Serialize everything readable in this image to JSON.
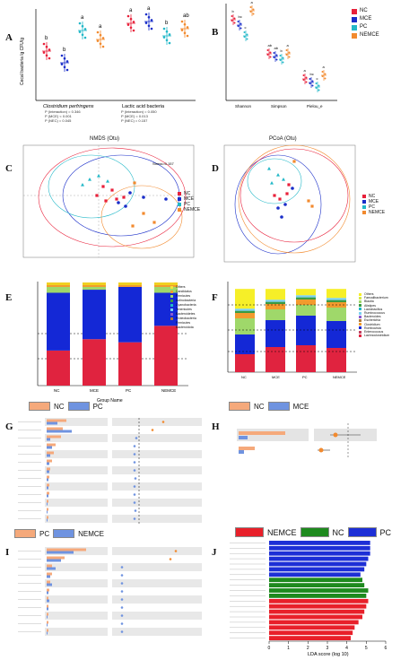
{
  "labels": {
    "A": "A",
    "B": "B",
    "C": "C",
    "D": "D",
    "E": "E",
    "F": "F",
    "G": "G",
    "H": "H",
    "I": "I",
    "J": "J"
  },
  "colors": {
    "NC": "#e8203a",
    "MCE": "#1a2ec9",
    "PC": "#22b8c8",
    "NEMCE": "#f28a2e"
  },
  "panelA": {
    "ylabel": "Cecal bacteria lg CFU/g",
    "groups": [
      "Clostridium perfringens",
      "Lactic acid bacteria"
    ],
    "stats1": [
      "P (Interaction) = 0.346",
      "P (MCE) < 0.001",
      "P (NEC) = 0.045"
    ],
    "stats2": [
      "P (Interaction) = 0.050",
      "P (MCE) = 0.013",
      "P (NEC) = 0.157"
    ],
    "letters": [
      "b",
      "b",
      "a",
      "a",
      "a",
      "a",
      "b",
      "ab"
    ]
  },
  "panelB": {
    "groups": [
      "Shannon",
      "Simpson",
      "Pielou_e"
    ],
    "letters": [
      "b",
      "bc",
      "c",
      "a",
      "ab",
      "ab",
      "b",
      "a",
      "a",
      "bc",
      "c",
      "a"
    ]
  },
  "legendMain": [
    "NC",
    "MCE",
    "PC",
    "NEMCE"
  ],
  "panelC": {
    "title": "NMDS (Otu)",
    "stress": "Stress=0.157",
    "legend": [
      "NC",
      "MCE",
      "PC",
      "NEMCE"
    ]
  },
  "panelD": {
    "title": "PCoA (Otu)",
    "legend": [
      "NC",
      "MCE",
      "PC",
      "NEMCE"
    ]
  },
  "panelE": {
    "xlabel": "Group Name",
    "categories": [
      "NC",
      "MCE",
      "PC",
      "NEMCE"
    ],
    "legend": [
      "Others",
      "Candidatus",
      "Firmicutes",
      "Actinobacteria",
      "Cyanobacteria",
      "Tenericutes",
      "Bacteroidetes",
      "Proteobacteria",
      "Firmicutes",
      "Bacteroidota"
    ]
  },
  "panelF": {
    "categories": [
      "NC",
      "MCE",
      "PC",
      "NEMCE"
    ],
    "legend": [
      "Others",
      "Faecalibacterium",
      "Blautia",
      "Alistipes",
      "Lactobacillus",
      "Ruminococcus",
      "Bacteroides",
      "Escherichia",
      "Clostridium",
      "Romboutsia",
      "Enterococcus",
      "Lachnoclostridium"
    ]
  },
  "panelG": {
    "legend": [
      "NC",
      "PC"
    ]
  },
  "panelH": {
    "legend": [
      "NC",
      "MCE"
    ]
  },
  "panelI": {
    "legend": [
      "PC",
      "NEMCE"
    ]
  },
  "panelJ": {
    "legend": [
      "NEMCE",
      "NC",
      "PC"
    ],
    "xlabel": "LDA score (log 10)",
    "ticks": [
      "0",
      "1",
      "2",
      "3",
      "4",
      "5",
      "6"
    ]
  },
  "chart_data": [
    {
      "type": "bar",
      "title": "",
      "categories": [
        "NC",
        "MCE",
        "PC",
        "NEMCE"
      ],
      "series": [
        {
          "name": "Bacteroidota",
          "values": [
            0.34,
            0.45,
            0.42,
            0.58
          ]
        },
        {
          "name": "Firmicutes",
          "values": [
            0.56,
            0.48,
            0.54,
            0.32
          ]
        },
        {
          "name": "Others",
          "values": [
            0.1,
            0.07,
            0.04,
            0.1
          ]
        }
      ],
      "ylim": [
        0,
        1
      ]
    },
    {
      "type": "bar",
      "title": "",
      "categories": [
        "NC",
        "MCE",
        "PC",
        "NEMCE"
      ],
      "series": [
        {
          "name": "Others",
          "values": [
            0.4,
            0.3,
            0.25,
            0.28
          ]
        },
        {
          "name": "Lachnoclostridium",
          "values": [
            0.18,
            0.12,
            0.12,
            0.15
          ]
        },
        {
          "name": "Bacteroides",
          "values": [
            0.22,
            0.3,
            0.33,
            0.3
          ]
        },
        {
          "name": "Enterococcus",
          "values": [
            0.2,
            0.28,
            0.3,
            0.27
          ]
        }
      ],
      "ylim": [
        0,
        1
      ]
    },
    {
      "type": "bar",
      "title": "",
      "xlabel": "LDA score (log 10)",
      "categories": [
        "f1",
        "f2",
        "f3",
        "f4",
        "f5",
        "f6",
        "f7",
        "f8",
        "f9",
        "f10",
        "f11",
        "f12",
        "f13",
        "f14",
        "f15",
        "f16",
        "f17",
        "f18",
        "f19"
      ],
      "groups": [
        "PC",
        "PC",
        "PC",
        "PC",
        "PC",
        "PC",
        "PC",
        "NC",
        "NC",
        "NC",
        "NC",
        "NEMCE",
        "NEMCE",
        "NEMCE",
        "NEMCE",
        "NEMCE",
        "NEMCE",
        "NEMCE",
        "NEMCE"
      ],
      "values": [
        5.2,
        5.2,
        5.2,
        5.1,
        5.0,
        4.9,
        4.7,
        4.8,
        4.9,
        5.1,
        5.0,
        5.1,
        5.0,
        4.9,
        4.8,
        4.6,
        4.4,
        4.3,
        4.2
      ],
      "xlim": [
        0,
        6
      ]
    }
  ]
}
